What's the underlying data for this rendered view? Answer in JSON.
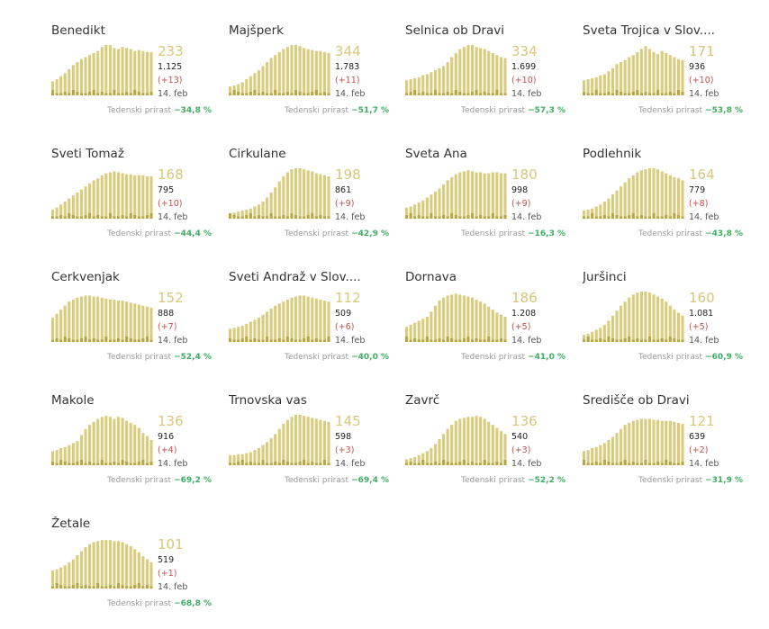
{
  "week_label": "Tedenski prirast",
  "colors": {
    "bar": "#d9cc7c",
    "bar_daily": "#b8a640",
    "value": "#d9c77a",
    "delta": "#c0504d",
    "pct": "#3fae63"
  },
  "chart_data": [
    {
      "type": "bar",
      "name": "Benedikt",
      "value": "233",
      "total": "1.125",
      "delta": "(+13)",
      "date": "14. feb",
      "pct": "−34,8 %",
      "values": [
        14,
        16,
        19,
        22,
        26,
        30,
        33,
        36,
        38,
        40,
        42,
        44,
        48,
        50,
        50,
        47,
        46,
        48,
        47,
        46,
        44,
        45,
        44,
        43,
        43
      ]
    },
    {
      "type": "bar",
      "name": "Majšperk",
      "value": "344",
      "total": "1.783",
      "delta": "(+11)",
      "date": "14. feb",
      "pct": "−51,7 %",
      "values": [
        9,
        10,
        11,
        13,
        16,
        19,
        22,
        25,
        29,
        33,
        37,
        40,
        43,
        46,
        48,
        50,
        50,
        49,
        47,
        46,
        45,
        44,
        44,
        43,
        42
      ]
    },
    {
      "type": "bar",
      "name": "Selnica ob Dravi",
      "value": "334",
      "total": "1.699",
      "delta": "(+10)",
      "date": "14. feb",
      "pct": "−57,3 %",
      "values": [
        15,
        16,
        17,
        18,
        20,
        21,
        23,
        25,
        27,
        29,
        33,
        38,
        42,
        46,
        48,
        50,
        50,
        48,
        47,
        46,
        44,
        42,
        40,
        38,
        37
      ]
    },
    {
      "type": "bar",
      "name": "Sveta Trojica v Slov....",
      "value": "171",
      "total": "936",
      "delta": "(+10)",
      "date": "14. feb",
      "pct": "−53,8 %",
      "values": [
        15,
        16,
        17,
        18,
        20,
        21,
        24,
        27,
        31,
        33,
        35,
        38,
        40,
        43,
        46,
        49,
        46,
        43,
        41,
        44,
        42,
        40,
        38,
        36,
        35
      ]
    },
    {
      "type": "bar",
      "name": "Sveti Tomaž",
      "value": "168",
      "total": "795",
      "delta": "(+10)",
      "date": "14. feb",
      "pct": "−44,4 %",
      "values": [
        9,
        11,
        14,
        17,
        20,
        23,
        26,
        29,
        32,
        35,
        38,
        40,
        43,
        45,
        46,
        47,
        46,
        45,
        44,
        44,
        43,
        43,
        43,
        42,
        42
      ]
    },
    {
      "type": "bar",
      "name": "Cirkulane",
      "value": "198",
      "total": "861",
      "delta": "(+9)",
      "date": "14. feb",
      "pct": "−42,9 %",
      "values": [
        5,
        6,
        7,
        8,
        9,
        10,
        12,
        14,
        17,
        21,
        26,
        31,
        37,
        42,
        46,
        49,
        50,
        50,
        49,
        48,
        47,
        45,
        44,
        43,
        42
      ]
    },
    {
      "type": "bar",
      "name": "Sveta Ana",
      "value": "180",
      "total": "998",
      "delta": "(+9)",
      "date": "14. feb",
      "pct": "−16,3 %",
      "values": [
        11,
        12,
        14,
        16,
        18,
        21,
        24,
        27,
        30,
        34,
        38,
        41,
        44,
        46,
        47,
        48,
        47,
        46,
        46,
        45,
        45,
        46,
        46,
        45,
        45
      ]
    },
    {
      "type": "bar",
      "name": "Podlehnik",
      "value": "164",
      "total": "779",
      "delta": "(+8)",
      "date": "14. feb",
      "pct": "−43,8 %",
      "values": [
        8,
        9,
        10,
        12,
        14,
        17,
        20,
        24,
        28,
        32,
        36,
        40,
        43,
        46,
        48,
        49,
        50,
        50,
        49,
        47,
        45,
        43,
        41,
        40,
        38
      ]
    },
    {
      "type": "bar",
      "name": "Cerkvenjak",
      "value": "152",
      "total": "888",
      "delta": "(+7)",
      "date": "14. feb",
      "pct": "−52,4 %",
      "values": [
        24,
        28,
        32,
        36,
        40,
        42,
        44,
        45,
        46,
        46,
        45,
        45,
        44,
        43,
        42,
        42,
        41,
        41,
        40,
        39,
        38,
        37,
        36,
        35,
        34
      ]
    },
    {
      "type": "bar",
      "name": "Sveti Andraž v Slov....",
      "value": "112",
      "total": "509",
      "delta": "(+6)",
      "date": "14. feb",
      "pct": "−40,0 %",
      "values": [
        13,
        14,
        15,
        16,
        18,
        20,
        22,
        24,
        27,
        30,
        33,
        36,
        38,
        40,
        42,
        44,
        45,
        46,
        46,
        45,
        44,
        43,
        42,
        41,
        40
      ]
    },
    {
      "type": "bar",
      "name": "Dornava",
      "value": "186",
      "total": "1.208",
      "delta": "(+5)",
      "date": "14. feb",
      "pct": "−41,0 %",
      "values": [
        15,
        17,
        19,
        21,
        23,
        25,
        30,
        36,
        41,
        44,
        46,
        47,
        48,
        47,
        46,
        45,
        44,
        42,
        40,
        38,
        35,
        32,
        29,
        27,
        25
      ]
    },
    {
      "type": "bar",
      "name": "Juršinci",
      "value": "160",
      "total": "1.081",
      "delta": "(+5)",
      "date": "14. feb",
      "pct": "−60,9 %",
      "values": [
        7,
        8,
        10,
        12,
        14,
        17,
        21,
        26,
        31,
        36,
        40,
        44,
        47,
        49,
        50,
        50,
        49,
        47,
        45,
        43,
        40,
        36,
        32,
        29,
        26
      ]
    },
    {
      "type": "bar",
      "name": "Makole",
      "value": "136",
      "total": "916",
      "delta": "(+4)",
      "date": "14. feb",
      "pct": "−69,2 %",
      "values": [
        14,
        15,
        17,
        18,
        20,
        22,
        24,
        30,
        36,
        40,
        43,
        46,
        48,
        49,
        48,
        46,
        48,
        47,
        44,
        42,
        40,
        37,
        32,
        29,
        25
      ]
    },
    {
      "type": "bar",
      "name": "Trnovska vas",
      "value": "145",
      "total": "598",
      "delta": "(+3)",
      "date": "14. feb",
      "pct": "−69,4 %",
      "values": [
        10,
        10,
        11,
        11,
        12,
        13,
        15,
        17,
        20,
        23,
        27,
        31,
        36,
        41,
        45,
        48,
        50,
        50,
        49,
        48,
        47,
        46,
        45,
        44,
        43
      ]
    },
    {
      "type": "bar",
      "name": "Zavrč",
      "value": "136",
      "total": "540",
      "delta": "(+3)",
      "date": "14. feb",
      "pct": "−52,2 %",
      "values": [
        6,
        7,
        8,
        10,
        12,
        14,
        17,
        21,
        26,
        31,
        36,
        40,
        44,
        46,
        47,
        48,
        48,
        49,
        48,
        46,
        43,
        40,
        37,
        34,
        31
      ]
    },
    {
      "type": "bar",
      "name": "Središče ob Dravi",
      "value": "121",
      "total": "639",
      "delta": "(+2)",
      "date": "14. feb",
      "pct": "−31,9 %",
      "values": [
        14,
        15,
        17,
        18,
        20,
        22,
        25,
        28,
        32,
        36,
        40,
        42,
        44,
        45,
        46,
        46,
        46,
        45,
        45,
        44,
        44,
        44,
        43,
        42,
        41
      ]
    },
    {
      "type": "bar",
      "name": "Žetale",
      "value": "101",
      "total": "519",
      "delta": "(+1)",
      "date": "14. feb",
      "pct": "−68,8 %",
      "values": [
        18,
        19,
        21,
        23,
        26,
        29,
        33,
        37,
        41,
        44,
        46,
        47,
        48,
        48,
        48,
        47,
        47,
        46,
        44,
        42,
        39,
        36,
        32,
        29,
        26
      ]
    }
  ]
}
